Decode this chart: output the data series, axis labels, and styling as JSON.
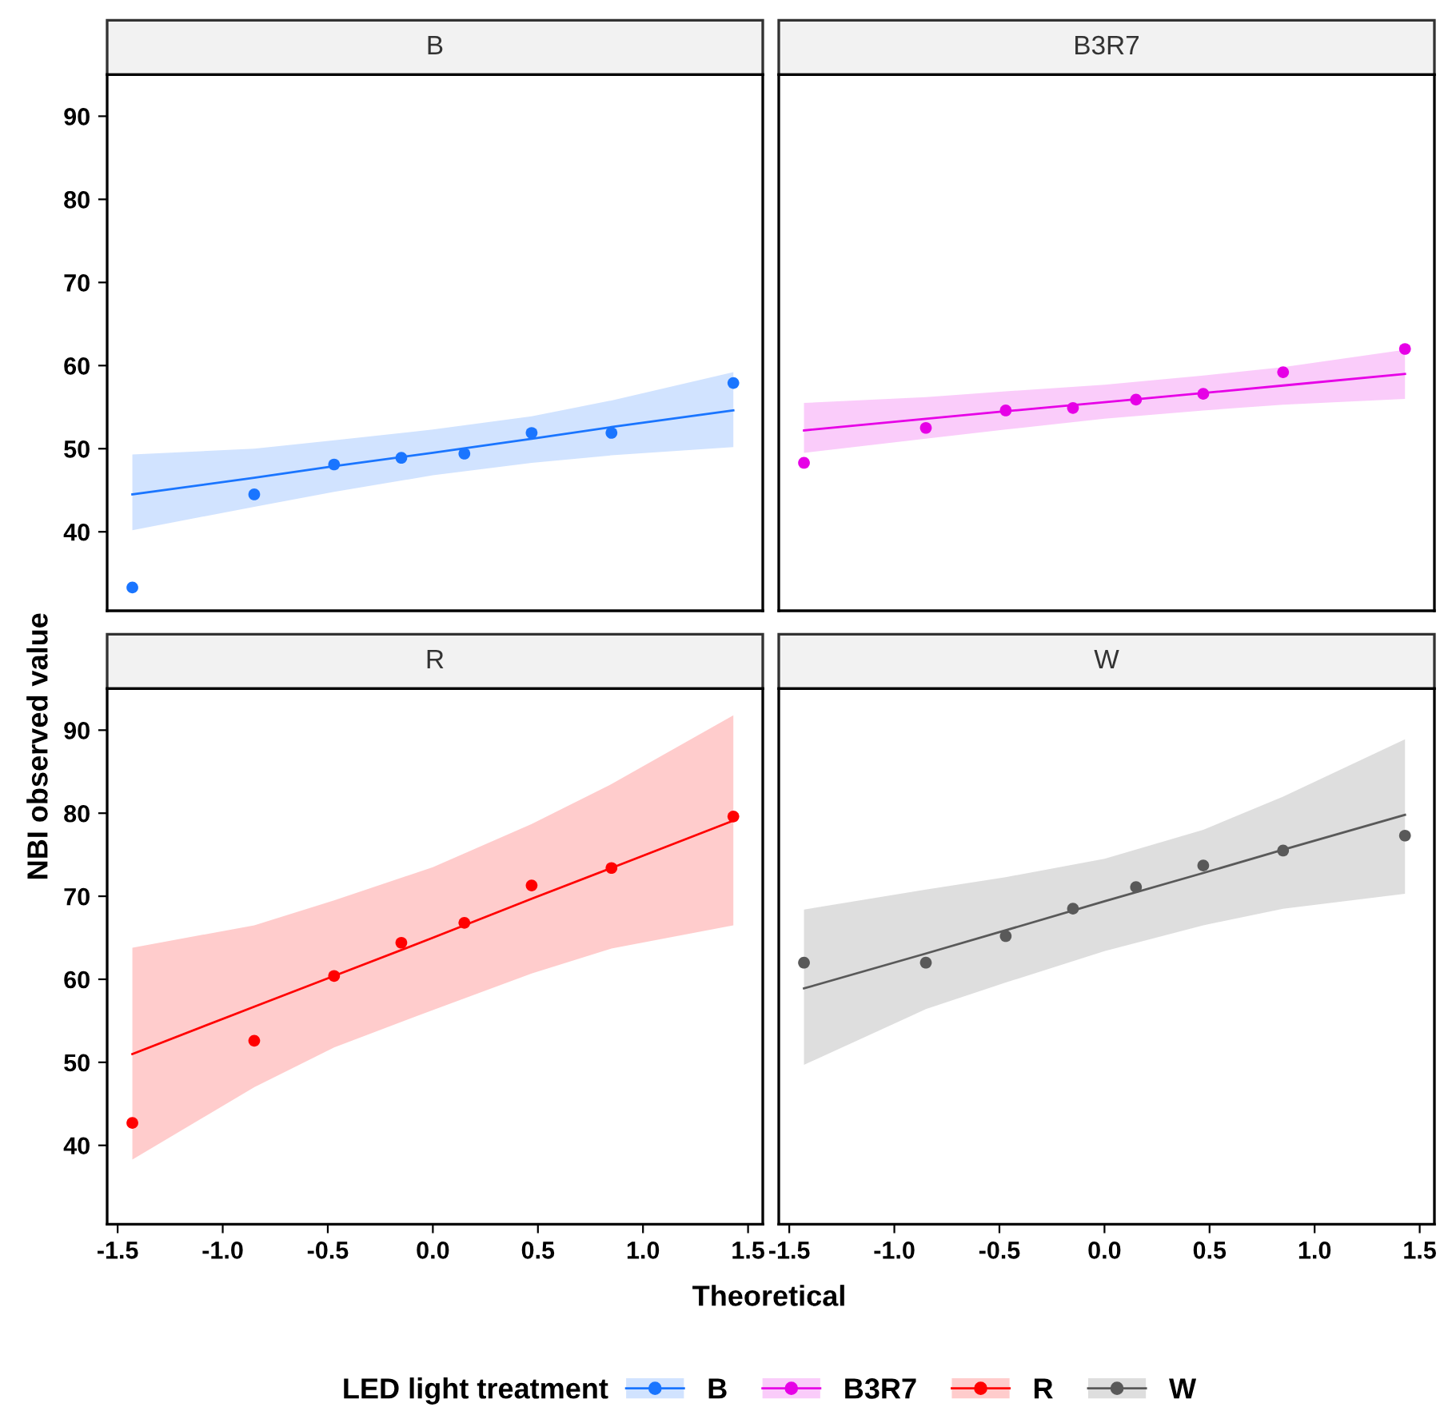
{
  "chart_data": [
    {
      "type": "scatter",
      "title": "B",
      "ylabel": "NBI observed value",
      "xlim": [
        -1.55,
        1.57
      ],
      "ylim": [
        30.5,
        95
      ],
      "yticks": [
        40,
        50,
        60,
        70,
        80,
        90
      ],
      "tick_labels": "y",
      "legend": "bottom",
      "grid": false,
      "series": [
        {
          "name": "B",
          "color": "#1a75ff",
          "marker": "circle",
          "x": [
            -1.43,
            -0.85,
            -0.47,
            -0.15,
            0.15,
            0.47,
            0.85,
            1.43
          ],
          "values": [
            33.3,
            44.5,
            48.1,
            48.9,
            49.4,
            51.9,
            51.9,
            57.9
          ]
        },
        {
          "type": "line",
          "color": "#1a75ff",
          "x": [
            -1.43,
            -0.85,
            -0.47,
            0,
            0.47,
            0.85,
            1.43
          ],
          "values": [
            44.5,
            46.5,
            47.9,
            49.5,
            51.2,
            52.6,
            54.6
          ],
          "lower": [
            40.2,
            43.0,
            44.8,
            46.8,
            48.3,
            49.2,
            50.2
          ],
          "upper": [
            49.3,
            50.0,
            51.0,
            52.3,
            53.9,
            55.8,
            59.2
          ]
        }
      ]
    },
    {
      "type": "scatter",
      "title": "B3R7",
      "xlim": [
        -1.55,
        1.57
      ],
      "ylim": [
        30.5,
        95
      ],
      "tick_labels": false,
      "legend": "bottom",
      "grid": false,
      "series": [
        {
          "name": "B3R7",
          "color": "#e600e6",
          "marker": "circle",
          "x": [
            -1.43,
            -0.85,
            -0.47,
            -0.15,
            0.15,
            0.47,
            0.85,
            1.43
          ],
          "values": [
            48.3,
            52.5,
            54.6,
            54.9,
            55.9,
            56.6,
            59.2,
            62.0
          ]
        },
        {
          "type": "line",
          "color": "#e600e6",
          "x": [
            -1.43,
            -0.85,
            -0.47,
            0,
            0.47,
            0.85,
            1.43
          ],
          "values": [
            52.2,
            53.6,
            54.5,
            55.6,
            56.7,
            57.6,
            59.0
          ],
          "lower": [
            49.5,
            51.2,
            52.3,
            53.6,
            54.6,
            55.3,
            56.0
          ],
          "upper": [
            55.5,
            56.2,
            56.9,
            57.7,
            58.8,
            59.8,
            61.9
          ]
        }
      ]
    },
    {
      "type": "scatter",
      "title": "R",
      "xlabel": "Theoretical",
      "xlim": [
        -1.55,
        1.57
      ],
      "ylim": [
        30.5,
        95
      ],
      "xticks": [
        -1.5,
        {
          "value": -1,
          "label": "-1.0"
        },
        -0.5,
        {
          "value": 0,
          "label": "0.0"
        },
        0.5,
        {
          "value": 1,
          "label": "1.0"
        },
        1.5
      ],
      "yticks": [
        40,
        50,
        60,
        70,
        80,
        90
      ],
      "legend": "bottom",
      "grid": false,
      "series": [
        {
          "name": "R",
          "color": "#ff0000",
          "marker": "circle",
          "x": [
            -1.43,
            -0.85,
            -0.47,
            -0.15,
            0.15,
            0.47,
            0.85,
            1.43
          ],
          "values": [
            42.7,
            52.6,
            60.4,
            64.4,
            66.8,
            71.3,
            73.4,
            79.6
          ]
        },
        {
          "type": "line",
          "color": "#ff0000",
          "x": [
            -1.43,
            -0.85,
            -0.47,
            0,
            0.47,
            0.85,
            1.43
          ],
          "values": [
            51.0,
            56.7,
            60.4,
            65.0,
            69.7,
            73.4,
            79.1
          ],
          "lower": [
            38.3,
            47.0,
            51.8,
            56.3,
            60.7,
            63.7,
            66.5
          ],
          "upper": [
            63.8,
            66.5,
            69.5,
            73.5,
            78.7,
            83.5,
            91.8
          ]
        }
      ]
    },
    {
      "type": "scatter",
      "title": "W",
      "legend_title": "LED light treatment",
      "xlim": [
        -1.55,
        1.57
      ],
      "ylim": [
        30.5,
        95
      ],
      "xticks": [
        -1.5,
        {
          "value": -1,
          "label": "-1.0"
        },
        -0.5,
        {
          "value": 0,
          "label": "0.0"
        },
        0.5,
        {
          "value": 1,
          "label": "1.0"
        },
        1.5
      ],
      "tick_labels": "x",
      "legend": "bottom",
      "grid": false,
      "series": [
        {
          "name": "W",
          "color": "#595959",
          "marker": "circle",
          "x": [
            -1.43,
            -0.85,
            -0.47,
            -0.15,
            0.15,
            0.47,
            0.85,
            1.43
          ],
          "values": [
            62.0,
            62.0,
            65.2,
            68.5,
            71.1,
            73.7,
            75.5,
            77.3
          ]
        },
        {
          "type": "line",
          "color": "#595959",
          "x": [
            -1.43,
            -0.85,
            -0.47,
            0,
            0.47,
            0.85,
            1.43
          ],
          "values": [
            58.9,
            63.1,
            65.9,
            69.4,
            72.8,
            75.6,
            79.8
          ],
          "lower": [
            49.7,
            56.4,
            59.6,
            63.4,
            66.5,
            68.5,
            70.3
          ],
          "upper": [
            68.4,
            70.8,
            72.3,
            74.5,
            78.0,
            82.0,
            88.9
          ]
        }
      ]
    }
  ]
}
